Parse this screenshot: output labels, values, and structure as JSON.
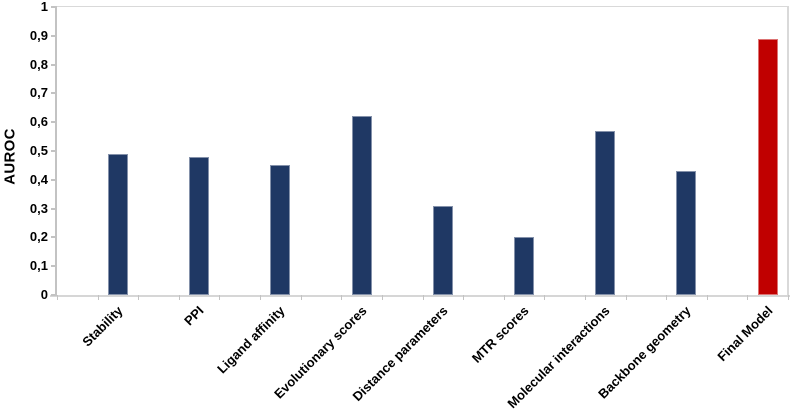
{
  "chart_data": {
    "type": "bar",
    "title": "",
    "xlabel": "",
    "ylabel": "AUROC",
    "ylim": [
      0,
      1
    ],
    "y_tick_values": [
      0,
      0.1,
      0.2,
      0.3,
      0.4,
      0.5,
      0.6,
      0.7,
      0.8,
      0.9,
      1
    ],
    "y_tick_labels": [
      "0",
      "0,1",
      "0,2",
      "0,3",
      "0,4",
      "0,5",
      "0,6",
      "0,7",
      "0,8",
      "0,9",
      "1"
    ],
    "decimal_separator": ",",
    "grid": false,
    "legend": "none",
    "categories": [
      "Stability",
      "PPI",
      "Ligand affinity",
      "Evolutionary scores",
      "Distance parameters",
      "MTR scores",
      "Molecular interactions",
      "Backbone geometry",
      "Final Model"
    ],
    "values": [
      0.49,
      0.48,
      0.45,
      0.62,
      0.31,
      0.2,
      0.57,
      0.43,
      0.89
    ],
    "bar_colors": [
      "#1F3864",
      "#1F3864",
      "#1F3864",
      "#1F3864",
      "#1F3864",
      "#1F3864",
      "#1F3864",
      "#1F3864",
      "#C00000"
    ],
    "colors": {
      "bar_default": "#1F3864",
      "bar_highlight": "#C00000",
      "axis_line": "#C3C3C3",
      "frame_line": "#D9D9D9",
      "text": "#000000",
      "background": "#FFFFFF"
    }
  }
}
